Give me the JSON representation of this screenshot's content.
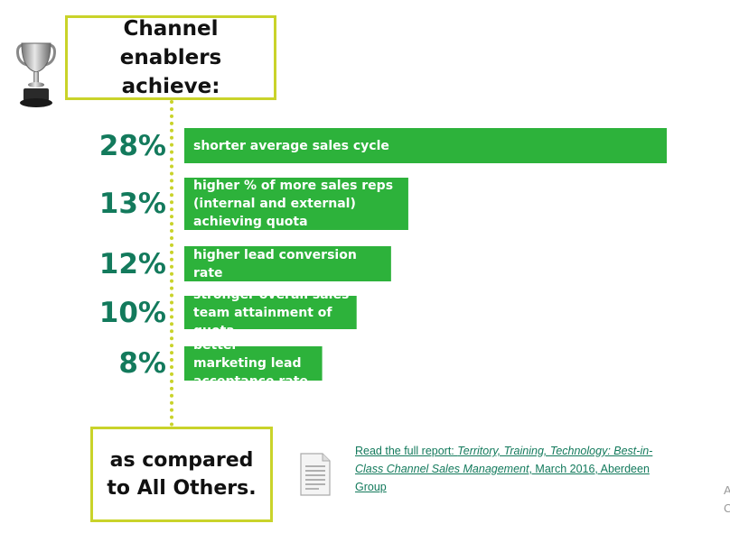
{
  "header": {
    "title": "Channel enablers achieve:"
  },
  "chart_data": {
    "type": "bar",
    "orientation": "horizontal",
    "categories": [
      "shorter average sales cycle",
      "higher % of more sales reps (internal and external) achieving quota",
      "higher lead conversion rate",
      "stronger overall sales team attainment of quota",
      "better marketing lead acceptance rate"
    ],
    "values": [
      28,
      13,
      12,
      10,
      8
    ],
    "value_labels": [
      "28%",
      "13%",
      "12%",
      "10%",
      "8%"
    ],
    "unit": "%",
    "bar_color": "#2db23b"
  },
  "footer": {
    "comparison": "as compared to All Others.",
    "report_prefix": "Read the full report: ",
    "report_title": "Territory, Training, Technology: Best-in-Class Channel Sales Management",
    "report_suffix": ", March 2016, Aberdeen Group"
  },
  "colors": {
    "accent_border": "#c9d32a",
    "percent_text": "#137a5c",
    "bar": "#2db23b"
  },
  "icons": {
    "trophy": "trophy-icon",
    "document": "document-icon"
  },
  "edge_fragment": "A\nC"
}
